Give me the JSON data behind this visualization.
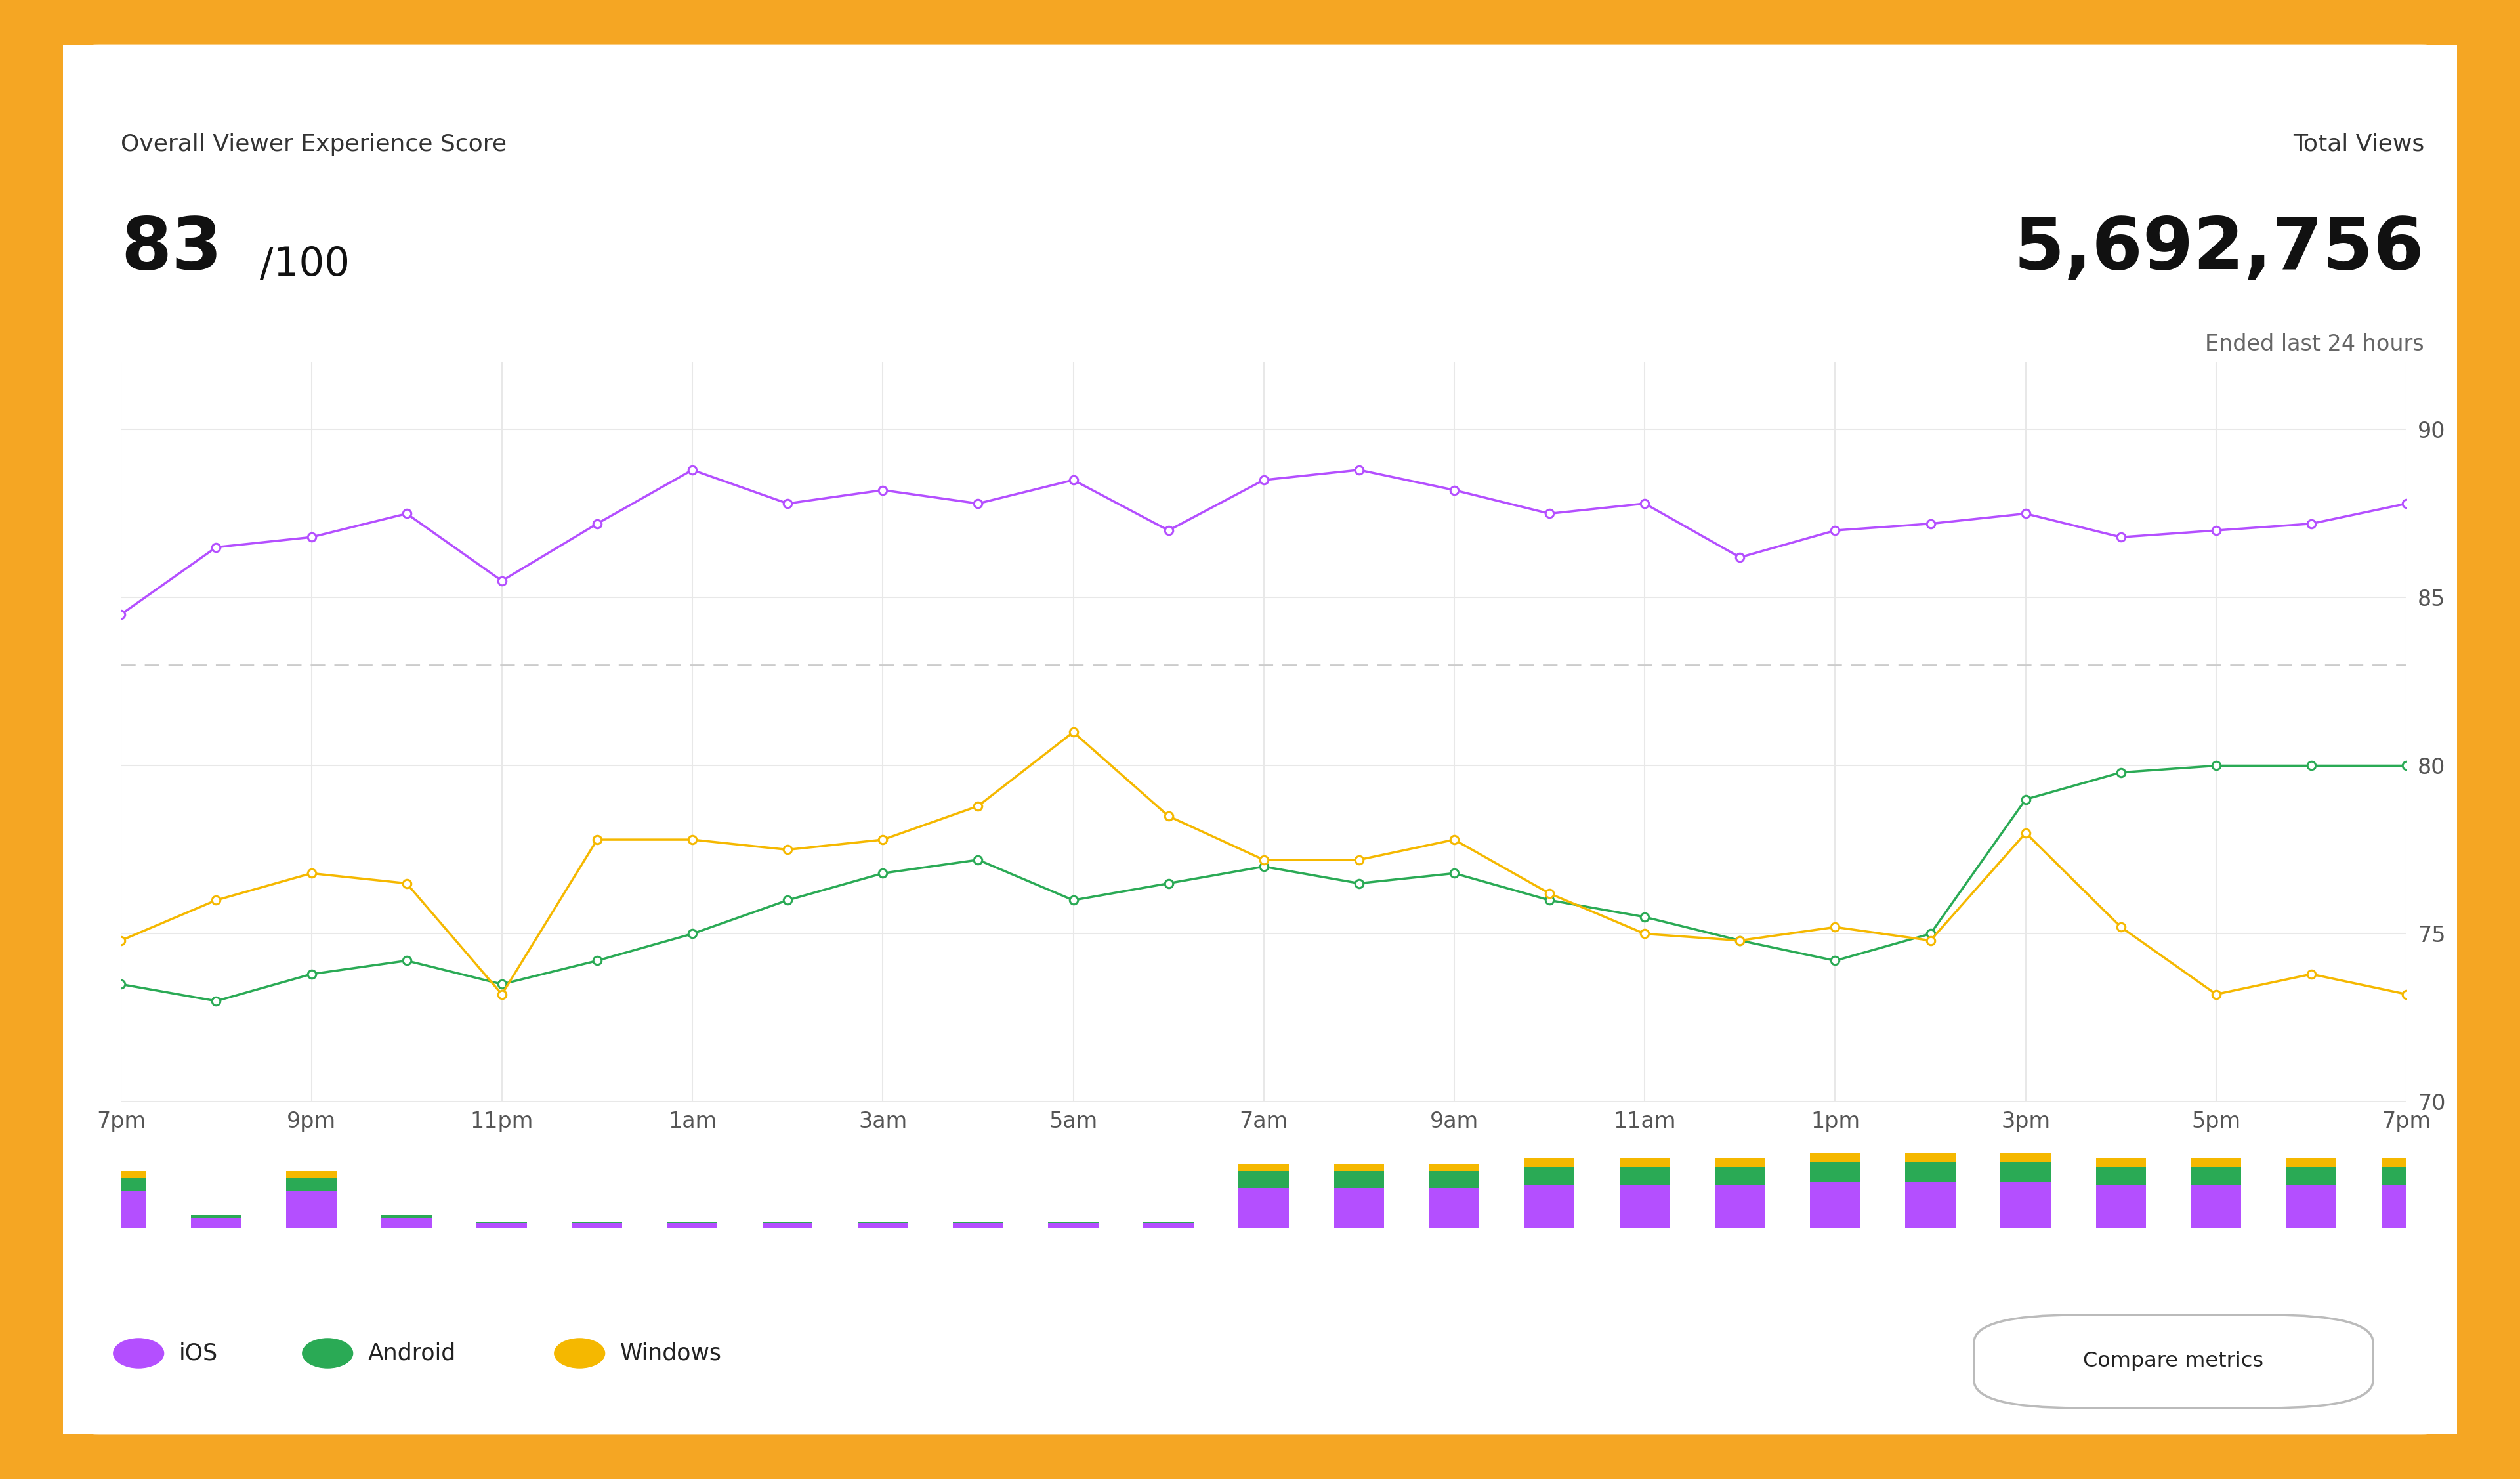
{
  "title_score_label": "Overall Viewer Experience Score",
  "score_value": "83",
  "score_suffix": "/100",
  "total_views_label": "Total Views",
  "total_views_value": "5,692,756",
  "total_views_sublabel": "Ended last 24 hours",
  "x_labels": [
    "7pm",
    "9pm",
    "11pm",
    "1am",
    "3am",
    "5am",
    "7am",
    "9am",
    "11am",
    "1pm",
    "3pm",
    "5pm",
    "7pm"
  ],
  "ios_data": [
    84.5,
    86.5,
    86.8,
    87.5,
    85.5,
    87.2,
    88.8,
    87.8,
    88.2,
    87.8,
    88.5,
    87.0,
    88.5,
    88.8,
    88.2,
    87.5,
    87.8,
    86.2,
    87.0,
    87.2,
    87.5,
    86.8,
    87.0,
    87.2,
    87.8
  ],
  "android_data": [
    73.5,
    73.0,
    73.8,
    74.2,
    73.5,
    74.2,
    75.0,
    76.0,
    76.8,
    77.2,
    76.0,
    76.5,
    77.0,
    76.5,
    76.8,
    76.0,
    75.5,
    74.8,
    74.2,
    75.0,
    79.0,
    79.8,
    80.0,
    80.0,
    80.0
  ],
  "windows_data": [
    74.8,
    76.0,
    76.8,
    76.5,
    73.2,
    77.8,
    77.8,
    77.5,
    77.8,
    78.8,
    81.0,
    78.5,
    77.2,
    77.2,
    77.8,
    76.2,
    75.0,
    74.8,
    75.2,
    74.8,
    78.0,
    75.2,
    73.2,
    73.8,
    73.2
  ],
  "ios_color": "#b44fff",
  "android_color": "#2aaa55",
  "windows_color": "#f5b800",
  "ylim_lower": 70,
  "ylim_upper": 92,
  "yticks": [
    70,
    75,
    80,
    85,
    90
  ],
  "dashed_line_y": 83,
  "background_color": "#ffffff",
  "outer_background": "#f5a623",
  "card_bg": "#ffffff",
  "grid_color": "#e8e8e8",
  "compare_button_label": "Compare metrics",
  "legend_ios": "iOS",
  "legend_android": "Android",
  "legend_windows": "Windows",
  "bar_ios_heights": [
    1.0,
    0.3,
    1.0,
    0.3,
    0.3,
    0.3,
    0.3,
    0.3,
    0.3,
    0.3,
    0.3,
    0.3,
    1.2,
    1.2,
    1.2,
    1.2,
    1.2,
    1.2,
    1.2,
    1.2,
    1.2,
    1.2,
    1.2,
    1.2,
    1.2
  ],
  "bar_android_heights": [
    0.4,
    0.1,
    0.4,
    0.1,
    0.1,
    0.1,
    0.1,
    0.1,
    0.1,
    0.1,
    0.1,
    0.1,
    0.5,
    0.5,
    0.5,
    0.5,
    0.5,
    0.5,
    0.5,
    0.5,
    0.5,
    0.5,
    0.5,
    0.5,
    0.5
  ],
  "bar_windows_heights": [
    0.2,
    0.0,
    0.2,
    0.0,
    0.0,
    0.0,
    0.0,
    0.0,
    0.0,
    0.0,
    0.0,
    0.0,
    0.2,
    0.2,
    0.2,
    0.2,
    0.2,
    0.2,
    0.2,
    0.2,
    0.2,
    0.2,
    0.2,
    0.2,
    0.2
  ]
}
